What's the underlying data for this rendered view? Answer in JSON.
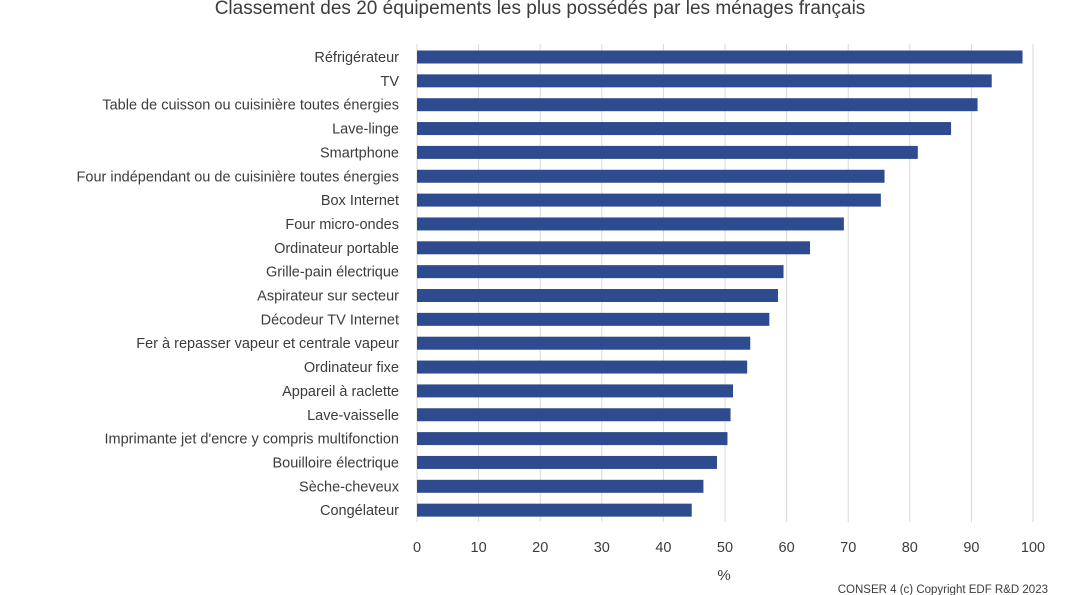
{
  "chart_data": {
    "type": "bar",
    "orientation": "horizontal",
    "title": "Classement des 20 équipements les plus possédés par les ménages français",
    "xlabel": "%",
    "ylabel": "",
    "xlim": [
      0,
      100
    ],
    "xticks": [
      0,
      10,
      20,
      30,
      40,
      50,
      60,
      70,
      80,
      90,
      100
    ],
    "grid": "vertical",
    "legend": "none",
    "source": "CONSER 4 (c) Copyright EDF R&D 2023",
    "bar_color": "#2f4b8f",
    "categories": [
      "Réfrigérateur",
      "TV",
      "Table de cuisson ou cuisinière toutes énergies",
      "Lave-linge",
      "Smartphone",
      "Four indépendant ou de cuisinière toutes énergies",
      "Box Internet",
      "Four micro-ondes",
      "Ordinateur portable",
      "Grille-pain électrique",
      "Aspirateur sur secteur",
      "Décodeur TV Internet",
      "Fer à repasser vapeur et centrale vapeur",
      "Ordinateur fixe",
      "Appareil à raclette",
      "Lave-vaisselle",
      "Imprimante jet d'encre y compris multifonction",
      "Bouilloire électrique",
      "Sèche-cheveux",
      "Congélateur"
    ],
    "values": [
      98.3,
      93.3,
      91.0,
      86.7,
      81.3,
      75.9,
      75.3,
      69.3,
      63.8,
      59.5,
      58.6,
      57.2,
      54.1,
      53.6,
      51.3,
      50.9,
      50.4,
      48.7,
      46.5,
      44.6
    ]
  }
}
